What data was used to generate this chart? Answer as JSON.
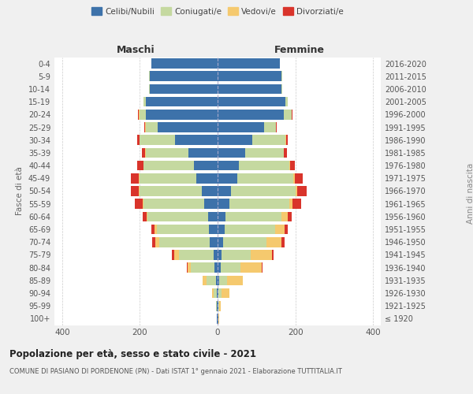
{
  "age_groups": [
    "100+",
    "95-99",
    "90-94",
    "85-89",
    "80-84",
    "75-79",
    "70-74",
    "65-69",
    "60-64",
    "55-59",
    "50-54",
    "45-49",
    "40-44",
    "35-39",
    "30-34",
    "25-29",
    "20-24",
    "15-19",
    "10-14",
    "5-9",
    "0-4"
  ],
  "birth_years": [
    "≤ 1920",
    "1921-1925",
    "1926-1930",
    "1931-1935",
    "1936-1940",
    "1941-1945",
    "1946-1950",
    "1951-1955",
    "1956-1960",
    "1961-1965",
    "1966-1970",
    "1971-1975",
    "1976-1980",
    "1981-1985",
    "1986-1990",
    "1991-1995",
    "1996-2000",
    "2001-2005",
    "2006-2010",
    "2011-2015",
    "2016-2020"
  ],
  "males": {
    "celibi": [
      2,
      2,
      3,
      4,
      8,
      10,
      20,
      22,
      25,
      35,
      40,
      55,
      60,
      75,
      110,
      155,
      185,
      185,
      175,
      175,
      170
    ],
    "coniugati": [
      1,
      2,
      8,
      25,
      60,
      90,
      130,
      135,
      155,
      155,
      160,
      145,
      130,
      110,
      90,
      30,
      15,
      5,
      2,
      1,
      1
    ],
    "vedovi": [
      0,
      1,
      4,
      10,
      10,
      12,
      10,
      5,
      3,
      3,
      2,
      2,
      1,
      1,
      1,
      1,
      2,
      0,
      0,
      0,
      0
    ],
    "divorziati": [
      0,
      0,
      0,
      0,
      2,
      5,
      8,
      8,
      10,
      20,
      22,
      22,
      15,
      8,
      5,
      3,
      2,
      0,
      0,
      0,
      0
    ]
  },
  "females": {
    "nubili": [
      2,
      2,
      3,
      5,
      8,
      10,
      15,
      18,
      20,
      30,
      35,
      50,
      55,
      70,
      90,
      120,
      170,
      175,
      165,
      165,
      160
    ],
    "coniugate": [
      1,
      2,
      8,
      20,
      50,
      75,
      110,
      130,
      145,
      155,
      165,
      145,
      130,
      100,
      85,
      30,
      20,
      5,
      2,
      1,
      1
    ],
    "vedove": [
      1,
      5,
      20,
      40,
      55,
      55,
      40,
      25,
      15,
      8,
      5,
      3,
      2,
      1,
      1,
      1,
      1,
      0,
      0,
      0,
      0
    ],
    "divorziate": [
      0,
      0,
      0,
      0,
      2,
      5,
      8,
      8,
      10,
      22,
      25,
      22,
      12,
      8,
      5,
      2,
      2,
      0,
      0,
      0,
      0
    ]
  },
  "colors": {
    "celibi": "#3d72aa",
    "coniugati": "#c5d9a0",
    "vedovi": "#f5c96e",
    "divorziati": "#d9342b"
  },
  "title": "Popolazione per età, sesso e stato civile - 2021",
  "subtitle": "COMUNE DI PASIANO DI PORDENONE (PN) - Dati ISTAT 1° gennaio 2021 - Elaborazione TUTTITALIA.IT",
  "xlabel_left": "Maschi",
  "xlabel_right": "Femmine",
  "ylabel_left": "Fasce di età",
  "ylabel_right": "Anni di nascita",
  "xlim": 420,
  "bg_color": "#f0f0f0",
  "plot_bg": "#ffffff"
}
